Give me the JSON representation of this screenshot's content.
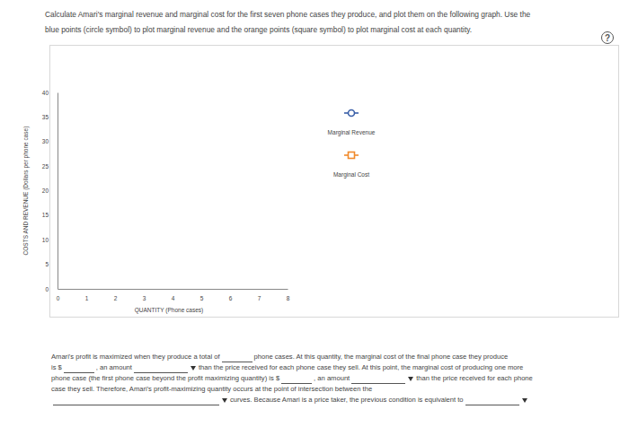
{
  "instructions": [
    "Calculate Amari's marginal revenue and marginal cost for the first seven phone cases they produce, and plot them on the following graph. Use the",
    "blue points (circle symbol) to plot marginal revenue and the orange points (square symbol) to plot marginal cost at each quantity."
  ],
  "help_icon": "?",
  "chart_data": {
    "type": "scatter",
    "xlabel": "QUANTITY (Phone cases)",
    "ylabel": "COSTS AND REVENUE (Dollars per phone case)",
    "xlim": [
      0,
      8
    ],
    "xticks": [
      0,
      1,
      2,
      3,
      4,
      5,
      6,
      7,
      8
    ],
    "ylim": [
      0,
      40
    ],
    "yticks": [
      0,
      5,
      10,
      15,
      20,
      25,
      30,
      35,
      40
    ],
    "grid": false,
    "legend": "right",
    "series": [
      {
        "name": "Marginal Revenue",
        "color": "#3a5fa8",
        "marker": "circle",
        "x": [],
        "values": []
      },
      {
        "name": "Marginal Cost",
        "color": "#f08a2c",
        "marker": "square",
        "x": [],
        "values": []
      }
    ]
  },
  "question": {
    "lines": [
      [
        {
          "text": "Amari's profit is maximized when they produce a total of"
        },
        {
          "field": "input"
        },
        {
          "text": "phone cases. At this quantity, the marginal cost of the final phone case they produce"
        }
      ],
      [
        {
          "text": "is $"
        },
        {
          "field": "input"
        },
        {
          "text": ", an amount"
        },
        {
          "field": "select"
        },
        {
          "text": "than the price received for each phone case they sell. At this point, the marginal cost of producing one more"
        }
      ],
      [
        {
          "text": "phone case (the first phone case beyond the profit maximizing quantity) is $"
        },
        {
          "field": "input"
        },
        {
          "text": ", an amount"
        },
        {
          "field": "select"
        },
        {
          "text": "than the price received for each phone"
        }
      ],
      [
        {
          "text": "case they sell. Therefore, Amari's profit-maximizing quantity occurs at the point of intersection between the"
        }
      ],
      [
        {
          "field": "select_wide"
        },
        {
          "text": "curves. Because Amari is a price taker, the previous condition is equivalent to"
        },
        {
          "field": "select"
        }
      ]
    ]
  }
}
